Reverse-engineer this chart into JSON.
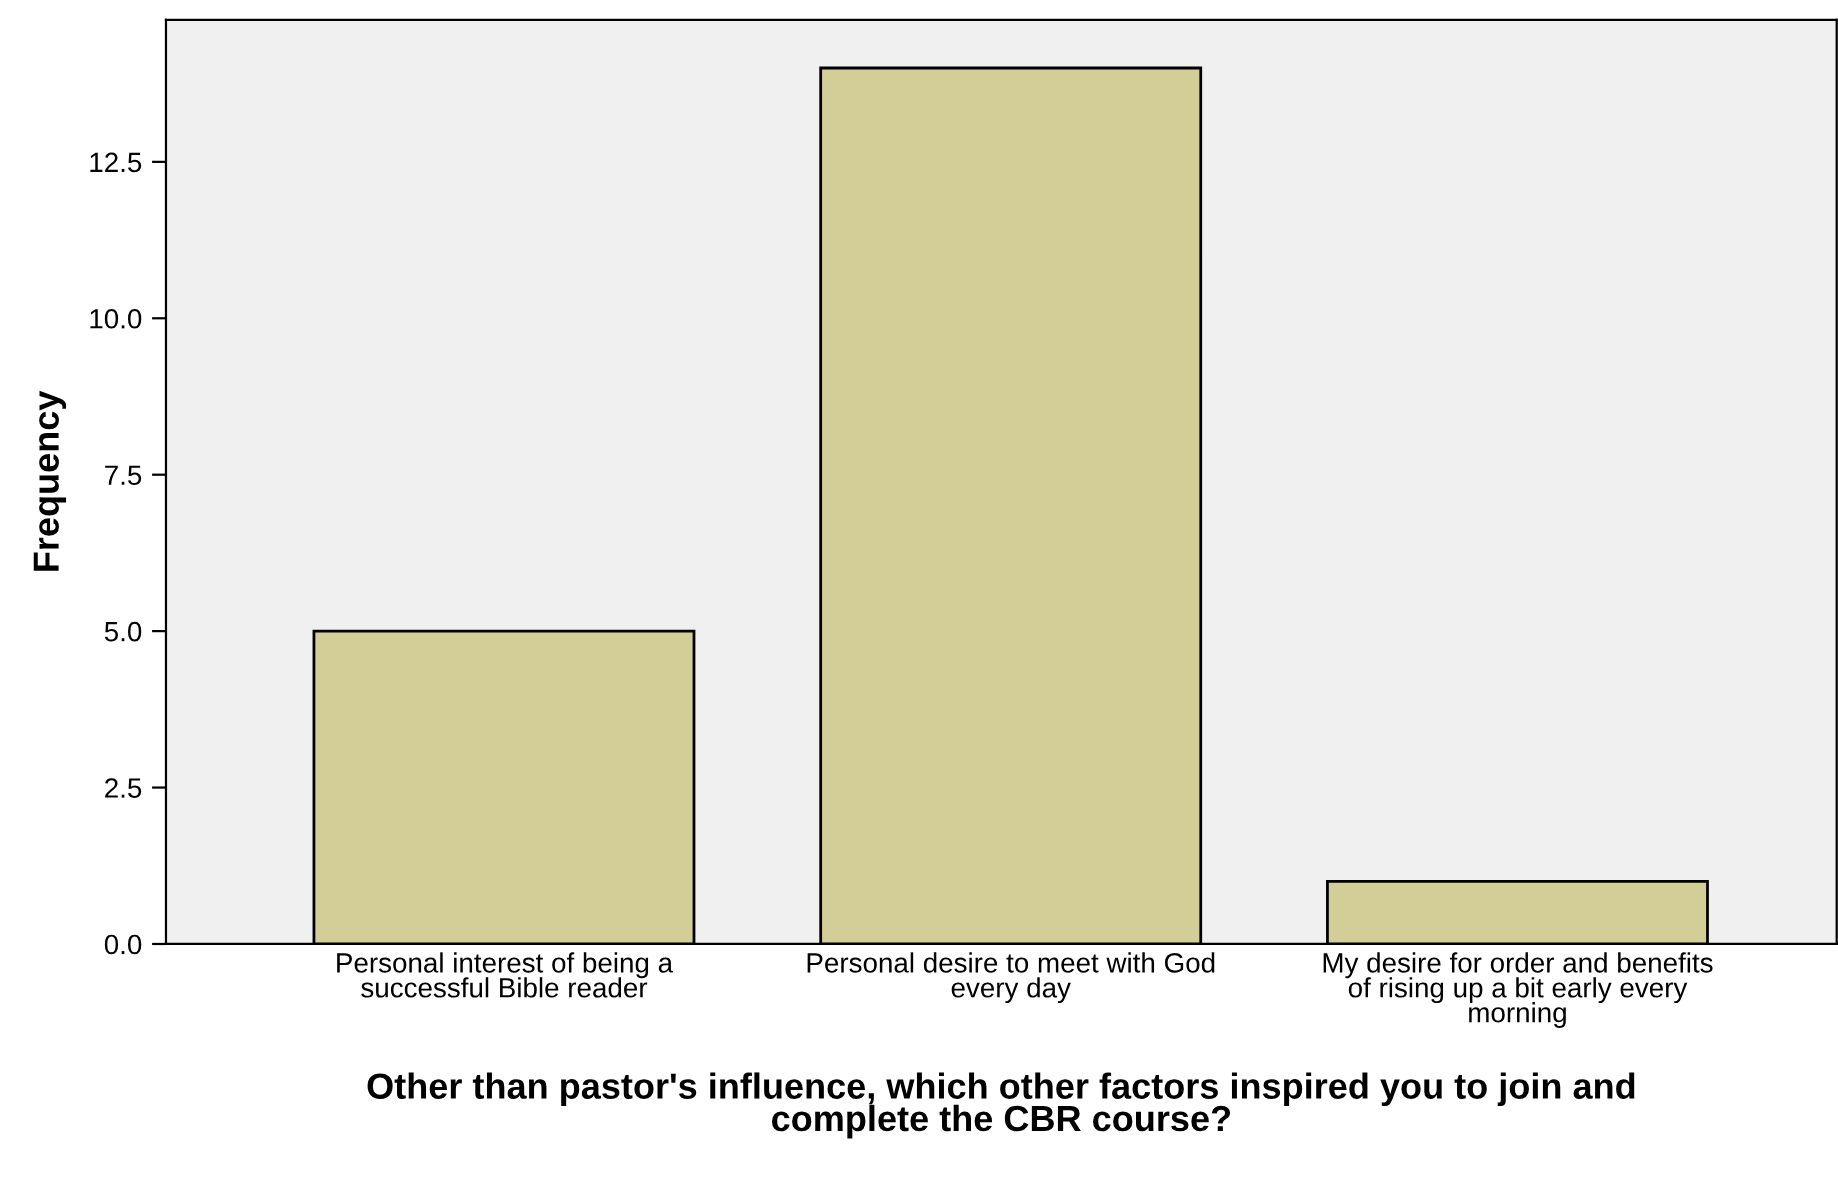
{
  "chart_data": {
    "type": "bar",
    "xlabel": "Other than pastor's influence, which other factors inspired you to join and\ncomplete the CBR course?",
    "ylabel": "Frequency",
    "categories": [
      "Personal interest of being a\nsuccessful Bible reader",
      "Personal desire to meet with God\nevery day",
      "My desire for order and benefits\nof rising up a bit early every\nmorning"
    ],
    "values": [
      5,
      14,
      1
    ],
    "color": "#d3ce97",
    "ylim": [
      0,
      14.77
    ],
    "yticks": [
      {
        "value": 0,
        "label": "0.0"
      },
      {
        "value": 2.5,
        "label": "2.5"
      },
      {
        "value": 5,
        "label": "5.0"
      },
      {
        "value": 7.5,
        "label": "7.5"
      },
      {
        "value": 10,
        "label": "10.0"
      },
      {
        "value": 12.5,
        "label": "12.5"
      }
    ],
    "grid": false
  }
}
